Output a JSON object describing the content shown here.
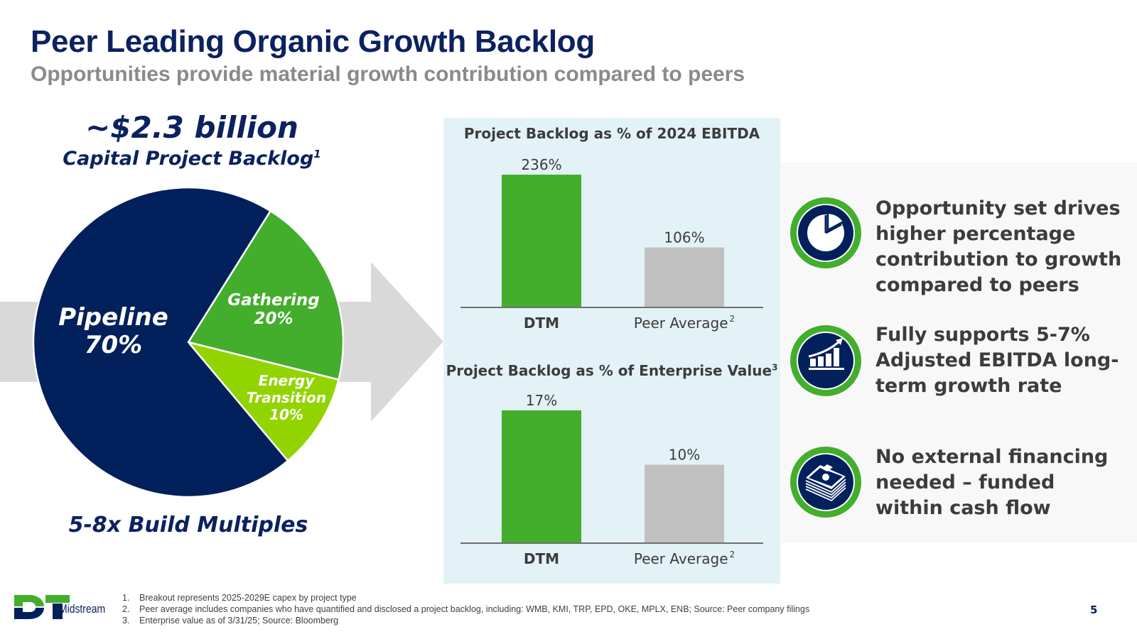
{
  "header": {
    "title": "Peer Leading Organic Growth Backlog",
    "subtitle": "Opportunities provide material growth contribution compared to peers"
  },
  "left": {
    "amount": "~$2.3 billion",
    "amount_caption": "Capital Project Backlog",
    "amount_caption_sup": "1",
    "bottom_text": "5-8x Build Multiples"
  },
  "colors": {
    "navy": "#02205c",
    "green": "#43ae2b",
    "lime": "#92d400",
    "gray_bar": "#c0c0c0",
    "arrow": "#d9d9d9",
    "panel_blue": "#e3f2f7",
    "panel_gray": "#f8f8f8"
  },
  "chart_data": [
    {
      "type": "pie",
      "title": "Capital Project Backlog",
      "slices": [
        {
          "name": "Pipeline",
          "label": "70%",
          "value": 70,
          "color": "#02205c"
        },
        {
          "name": "Gathering",
          "label": "20%",
          "value": 20,
          "color": "#43ae2b"
        },
        {
          "name": "Energy Transition",
          "label": "10%",
          "value": 10,
          "color": "#92d400"
        }
      ]
    },
    {
      "type": "bar",
      "title": "Project Backlog as % of 2024 EBITDA",
      "title_sup": "",
      "categories": [
        "DTM",
        "Peer Average"
      ],
      "category_sups": [
        "",
        "2"
      ],
      "values": [
        236,
        106
      ],
      "value_labels": [
        "236%",
        "106%"
      ],
      "colors": [
        "#43ae2b",
        "#c0c0c0"
      ],
      "ylim": [
        0,
        236
      ]
    },
    {
      "type": "bar",
      "title": "Project Backlog as % of Enterprise Value",
      "title_sup": "3",
      "categories": [
        "DTM",
        "Peer Average"
      ],
      "category_sups": [
        "",
        "2"
      ],
      "values": [
        17,
        10
      ],
      "value_labels": [
        "17%",
        "10%"
      ],
      "colors": [
        "#43ae2b",
        "#c0c0c0"
      ],
      "ylim": [
        0,
        17
      ]
    }
  ],
  "highlights": [
    {
      "icon": "pie-chart-icon",
      "lines": [
        "Opportunity set drives",
        "higher percentage",
        "contribution to growth",
        "compared to peers"
      ]
    },
    {
      "icon": "growth-chart-icon",
      "lines": [
        "Fully supports 5-7%",
        "Adjusted EBITDA long-",
        "term growth rate"
      ]
    },
    {
      "icon": "cash-stack-icon",
      "lines": [
        "No external financing",
        "needed – funded",
        "within cash flow"
      ]
    }
  ],
  "footer": {
    "logo_text": "Midstream",
    "logo_letters": "DT",
    "footnotes": [
      {
        "num": "1.",
        "text": "Breakout represents 2025-2029E capex by project type"
      },
      {
        "num": "2.",
        "text": "Peer average includes companies who have quantified and disclosed a project backlog, including: WMB, KMI, TRP, EPD, OKE, MPLX, ENB; Source: Peer company filings"
      },
      {
        "num": "3.",
        "text": "Enterprise value as of 3/31/25; Source: Bloomberg"
      }
    ],
    "page_number": "5"
  }
}
